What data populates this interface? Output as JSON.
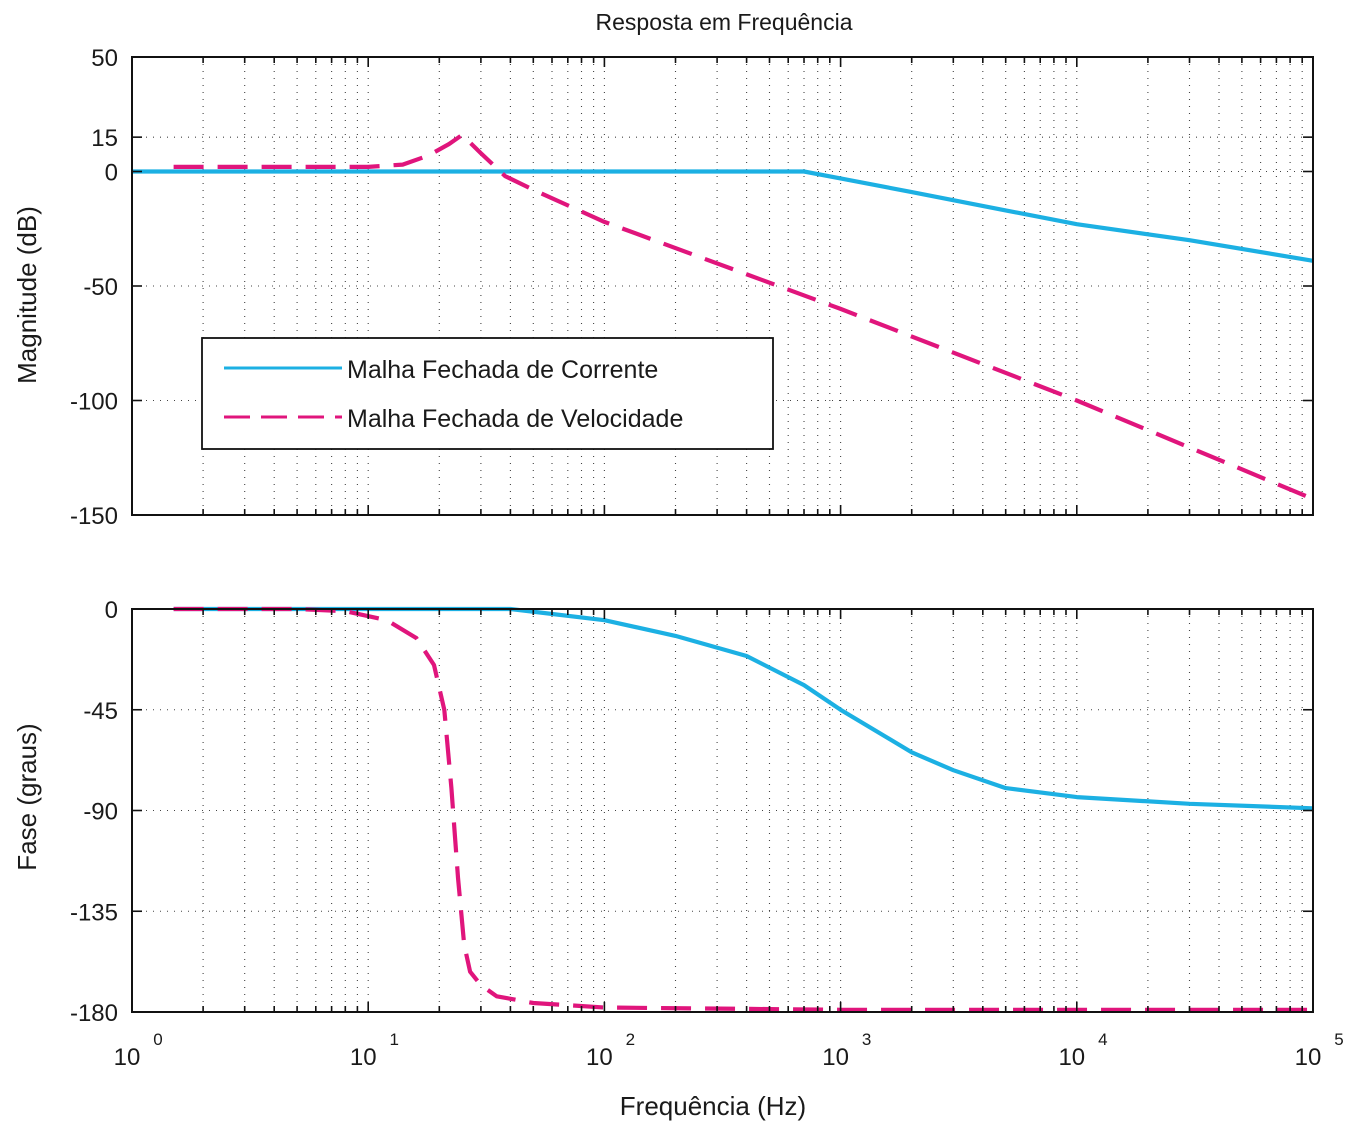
{
  "title": "Resposta em Frequência",
  "xlabel": "Frequência (Hz)",
  "colors": {
    "current": "#1cb0e3",
    "velocity": "#e0157c"
  },
  "legend": [
    {
      "label": "Malha Fechada de Corrente",
      "style": "solid",
      "color": "#1cb0e3"
    },
    {
      "label": "Malha Fechada de Velocidade",
      "style": "dashed",
      "color": "#e0157c"
    }
  ],
  "chart_data": [
    {
      "type": "line",
      "xscale": "log",
      "xlim": [
        1,
        100000
      ],
      "xticks": [
        1,
        10,
        100,
        1000,
        10000,
        100000
      ],
      "xticklabels": [
        {
          "base": "10",
          "exp": "0"
        },
        {
          "base": "10",
          "exp": "1"
        },
        {
          "base": "10",
          "exp": "2"
        },
        {
          "base": "10",
          "exp": "3"
        },
        {
          "base": "10",
          "exp": "4"
        },
        {
          "base": "10",
          "exp": "5"
        }
      ],
      "ylabel": "Magnitude (dB)",
      "ylim": [
        -150,
        50
      ],
      "yticks": [
        50,
        15,
        0,
        -50,
        -100,
        -150
      ],
      "yticklabels": [
        "50",
        "15",
        "0",
        "-50",
        "-100",
        "-150"
      ],
      "grid": true,
      "legend_position": "lower-left",
      "series": [
        {
          "name": "Malha Fechada de Corrente",
          "x": [
            1,
            10,
            100,
            400,
            700,
            1000,
            2000,
            5000,
            10000,
            30000,
            100000
          ],
          "y": [
            0,
            0,
            0,
            0,
            0,
            -3,
            -9,
            -17,
            -23,
            -30,
            -39
          ]
        },
        {
          "name": "Malha Fechada de Velocidade",
          "x": [
            1.5,
            5,
            10,
            14,
            18,
            22,
            25,
            30,
            38,
            50,
            100,
            1000,
            10000,
            100000
          ],
          "y": [
            2,
            2,
            2,
            3,
            7,
            12,
            16,
            8,
            -2,
            -8,
            -22,
            -60,
            -100,
            -143
          ]
        }
      ]
    },
    {
      "type": "line",
      "xscale": "log",
      "xlim": [
        1,
        100000
      ],
      "xticks": [
        1,
        10,
        100,
        1000,
        10000,
        100000
      ],
      "xlabel": "Frequência (Hz)",
      "ylabel": "Fase (graus)",
      "ylim": [
        -180,
        0
      ],
      "yticks": [
        0,
        -45,
        -90,
        -135,
        -180
      ],
      "yticklabels": [
        "0",
        "-45",
        "-90",
        "-135",
        "-180"
      ],
      "grid": true,
      "series": [
        {
          "name": "Malha Fechada de Corrente",
          "x": [
            1.5,
            10,
            40,
            100,
            200,
            400,
            700,
            1000,
            2000,
            3000,
            5000,
            10000,
            30000,
            100000
          ],
          "y": [
            0,
            0,
            0,
            -5,
            -12,
            -21,
            -34,
            -45,
            -64,
            -72,
            -80,
            -84,
            -87,
            -89
          ]
        },
        {
          "name": "Malha Fechada de Velocidade",
          "x": [
            1.5,
            5,
            8,
            12,
            16,
            19,
            21,
            22.5,
            24,
            25.5,
            27,
            30,
            35,
            50,
            100,
            1000,
            10000,
            100000
          ],
          "y": [
            0,
            0,
            -1,
            -5,
            -13,
            -25,
            -45,
            -80,
            -120,
            -150,
            -162,
            -168,
            -173,
            -176,
            -178,
            -179,
            -179,
            -179
          ]
        }
      ]
    }
  ]
}
